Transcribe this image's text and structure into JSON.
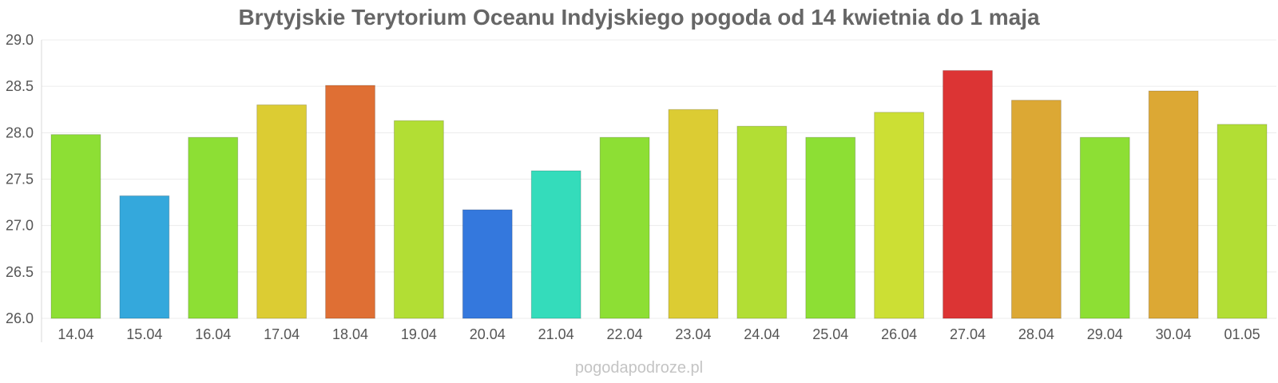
{
  "chart_data": {
    "type": "bar",
    "title": "Brytyjskie Terytorium Oceanu Indyjskiego pogoda od 14 kwietnia do 1 maja",
    "xlabel": "",
    "ylabel": "",
    "ylim": [
      26.0,
      29.0
    ],
    "yticks": [
      "26.0",
      "26.5",
      "27.0",
      "27.5",
      "28.0",
      "28.5",
      "29.0"
    ],
    "categories": [
      "14.04",
      "15.04",
      "16.04",
      "17.04",
      "18.04",
      "19.04",
      "20.04",
      "21.04",
      "22.04",
      "23.04",
      "24.04",
      "25.04",
      "26.04",
      "27.04",
      "28.04",
      "29.04",
      "30.04",
      "01.05"
    ],
    "values": [
      27.98,
      27.32,
      27.95,
      28.3,
      28.51,
      28.13,
      27.17,
      27.59,
      27.95,
      28.25,
      28.07,
      27.95,
      28.22,
      28.67,
      28.35,
      27.95,
      28.45,
      28.09
    ],
    "colors": [
      "#8ddf34",
      "#34a8dc",
      "#8ddf34",
      "#dccc33",
      "#df6f34",
      "#b2de34",
      "#3478dd",
      "#34dcbb",
      "#8ddf34",
      "#dccc33",
      "#b2de34",
      "#8ddf34",
      "#ccdf34",
      "#dc3434",
      "#dca834",
      "#8ddf34",
      "#dca834",
      "#b2de34"
    ],
    "grid": true,
    "legend": "none"
  },
  "watermark": "pogodapodroze.pl"
}
